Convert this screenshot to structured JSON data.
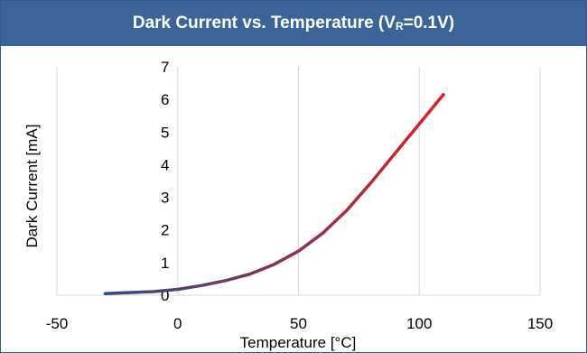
{
  "title": {
    "main": "Dark Current vs. Temperature (V",
    "subscript": "R",
    "suffix": "=0.1V)"
  },
  "colors": {
    "title_bar": "#3b6497",
    "curve_start": "#2e4a8a",
    "curve_end": "#e01b22",
    "grid": "#d9d9d9"
  },
  "chart_data": {
    "type": "line",
    "xlabel": "Temperature [°C]",
    "ylabel": "Dark Current [mA]",
    "xlim": [
      -50,
      150
    ],
    "ylim": [
      0,
      7
    ],
    "xticks": [
      -50,
      0,
      50,
      100,
      150
    ],
    "yticks": [
      0,
      1,
      2,
      3,
      4,
      5,
      6,
      7
    ],
    "grid": "vertical",
    "series": [
      {
        "x": [
          -30,
          -20,
          -10,
          0,
          10,
          20,
          30,
          40,
          50,
          60,
          70,
          80,
          90,
          100,
          110
        ],
        "y": [
          0.05,
          0.08,
          0.11,
          0.18,
          0.3,
          0.45,
          0.65,
          0.95,
          1.35,
          1.9,
          2.6,
          3.45,
          4.35,
          5.25,
          6.15
        ]
      }
    ]
  }
}
